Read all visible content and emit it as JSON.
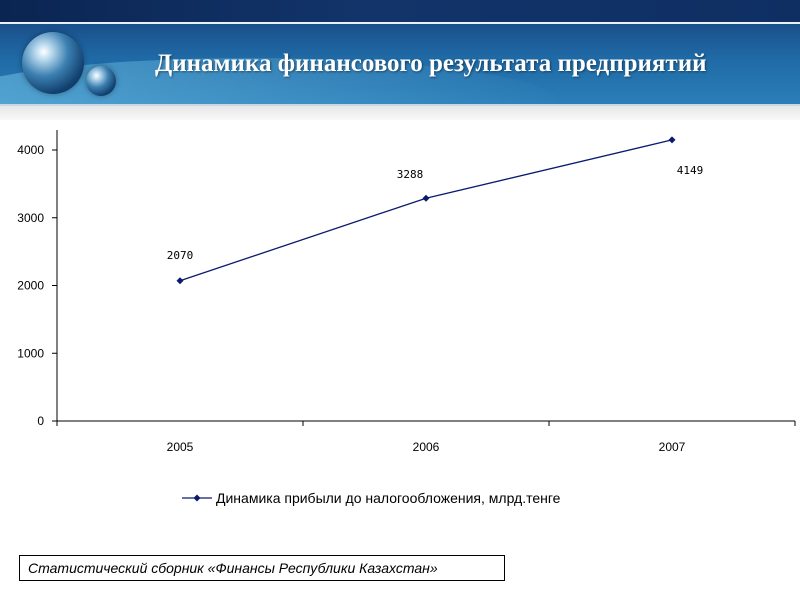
{
  "slide": {
    "title": "Динамика финансового результата предприятий",
    "source": "Статистический сборник «Финансы Республики Казахстан»"
  },
  "colors": {
    "series_line": "#0a1a6e",
    "axis": "#000000",
    "title_text": "#ffffff"
  },
  "chart_data": {
    "type": "line",
    "categories": [
      "2005",
      "2006",
      "2007"
    ],
    "series": [
      {
        "name": "Динамика прибыли до налогообложения, млрд.тенге",
        "values": [
          2070,
          3288,
          4149
        ]
      }
    ],
    "data_labels": [
      "2070",
      "3288",
      "4149"
    ],
    "y_ticks": [
      "0",
      "1000",
      "2000",
      "3000",
      "4000"
    ],
    "ylim": [
      0,
      4000
    ],
    "grid": false,
    "legend_position": "bottom",
    "marker": "diamond"
  }
}
